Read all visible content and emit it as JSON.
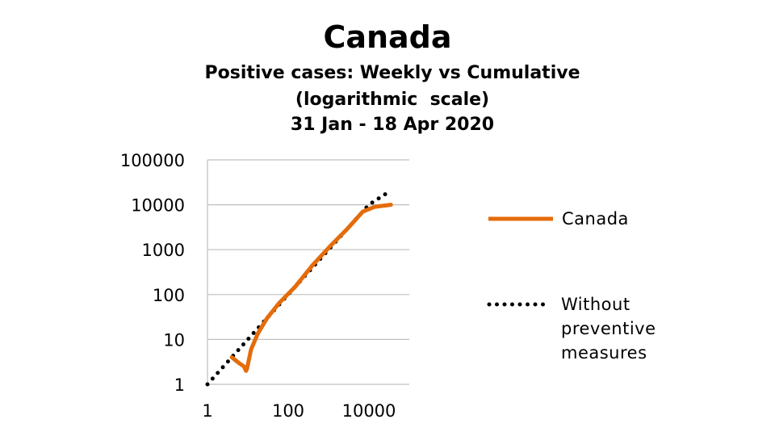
{
  "title": "Canada",
  "subtitle_lines": [
    "Positive cases: Weekly vs Cumulative",
    "(logarithmic  scale)",
    "31 Jan - 18 Apr 2020"
  ],
  "colors": {
    "canada": "#E46C0A",
    "without": "#000000",
    "grid": "#BFBFBF"
  },
  "chart_data": {
    "type": "line",
    "title": "Canada",
    "subtitle": "Positive cases: Weekly vs Cumulative (logarithmic scale) 31 Jan - 18 Apr 2020",
    "x_scale": "log",
    "y_scale": "log",
    "xlim": [
      1,
      100000
    ],
    "ylim": [
      1,
      100000
    ],
    "x_ticks": [
      "1",
      "100",
      "10000"
    ],
    "y_ticks": [
      "1",
      "10",
      "100",
      "1000",
      "10000",
      "100000"
    ],
    "grid": "horizontal",
    "legend_position": "right",
    "series": [
      {
        "name": "Canada",
        "style": "solid",
        "x": [
          4,
          6,
          8,
          9,
          9.5,
          12,
          18,
          30,
          60,
          150,
          400,
          1100,
          3000,
          7000,
          14000,
          35000
        ],
        "y": [
          4,
          3,
          2.5,
          2,
          2.2,
          6,
          14,
          30,
          65,
          150,
          450,
          1200,
          3000,
          7000,
          9000,
          10000
        ]
      },
      {
        "name": "Without preventive measures",
        "style": "dotted",
        "x": [
          1,
          10,
          100,
          1000,
          10000,
          30000
        ],
        "y": [
          1,
          10,
          100,
          1000,
          10000,
          19000
        ]
      }
    ]
  },
  "legend": [
    {
      "label": "Canada"
    },
    {
      "label_lines": [
        "Without",
        "preventive",
        "measures"
      ]
    }
  ]
}
